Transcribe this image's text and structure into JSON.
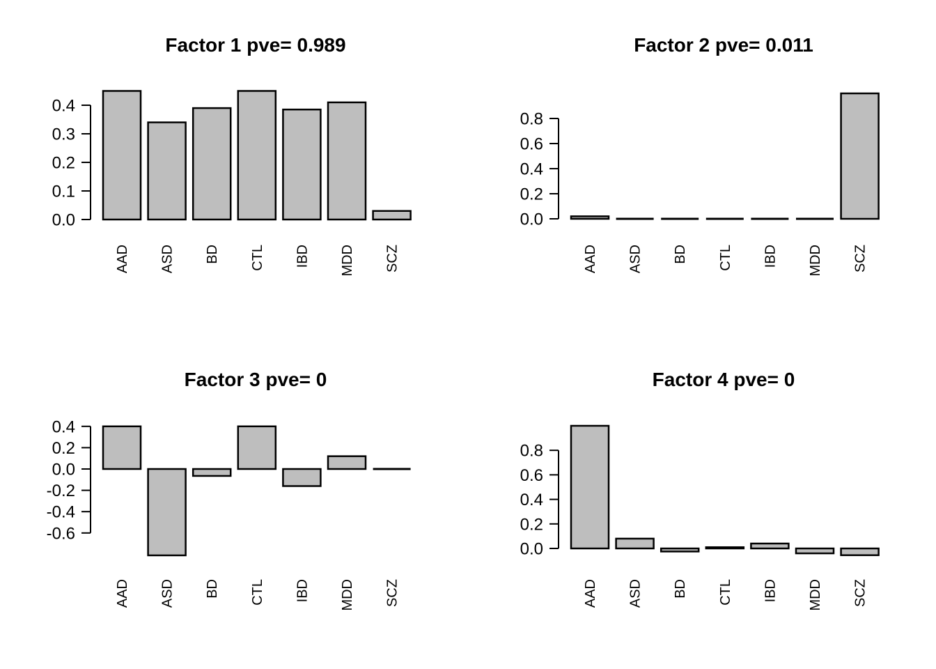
{
  "figure": {
    "background": "#ffffff",
    "bar_fill": "#bebebe",
    "bar_border": "#000000",
    "text_color": "#000000"
  },
  "chart_data": [
    {
      "type": "bar",
      "title": "Factor 1 pve= 0.989",
      "categories": [
        "AAD",
        "ASD",
        "BD",
        "CTL",
        "IBD",
        "MDD",
        "SCZ"
      ],
      "values": [
        0.45,
        0.34,
        0.39,
        0.45,
        0.385,
        0.41,
        0.03
      ],
      "xlabel": "",
      "ylabel": "",
      "ylim": [
        0,
        0.46
      ],
      "yticks": [
        0.0,
        0.1,
        0.2,
        0.3,
        0.4
      ],
      "ytick_labels": [
        "0.0",
        "0.1",
        "0.2",
        "0.3",
        "0.4"
      ],
      "grid": false,
      "legend": false
    },
    {
      "type": "bar",
      "title": "Factor 2 pve= 0.011",
      "categories": [
        "AAD",
        "ASD",
        "BD",
        "CTL",
        "IBD",
        "MDD",
        "SCZ"
      ],
      "values": [
        0.02,
        0.003,
        0.002,
        0.005,
        0.003,
        0.002,
        1.0
      ],
      "xlabel": "",
      "ylabel": "",
      "ylim": [
        0,
        1.0
      ],
      "yticks": [
        0.0,
        0.2,
        0.4,
        0.6,
        0.8
      ],
      "ytick_labels": [
        "0.0",
        "0.2",
        "0.4",
        "0.6",
        "0.8"
      ],
      "grid": false,
      "legend": false
    },
    {
      "type": "bar",
      "title": "Factor 3 pve= 0",
      "categories": [
        "AAD",
        "ASD",
        "BD",
        "CTL",
        "IBD",
        "MDD",
        "SCZ"
      ],
      "values": [
        0.4,
        -0.81,
        -0.065,
        0.4,
        -0.16,
        0.12,
        0.0
      ],
      "xlabel": "",
      "ylabel": "",
      "ylim": [
        -0.81,
        0.41
      ],
      "yticks": [
        0.4,
        0.2,
        0.0,
        -0.2,
        -0.4,
        -0.6
      ],
      "ytick_labels": [
        "0.4",
        "0.2",
        "0.0",
        "-0.2",
        "-0.4",
        "-0.6"
      ],
      "grid": false,
      "legend": false
    },
    {
      "type": "bar",
      "title": "Factor 4 pve= 0",
      "categories": [
        "AAD",
        "ASD",
        "BD",
        "CTL",
        "IBD",
        "MDD",
        "SCZ"
      ],
      "values": [
        1.0,
        0.08,
        -0.025,
        0.01,
        0.04,
        -0.04,
        -0.055
      ],
      "xlabel": "",
      "ylabel": "",
      "ylim": [
        -0.06,
        1.0
      ],
      "yticks": [
        0.0,
        0.2,
        0.4,
        0.6,
        0.8
      ],
      "ytick_labels": [
        "0.0",
        "0.2",
        "0.4",
        "0.6",
        "0.8"
      ],
      "grid": false,
      "legend": false
    }
  ]
}
